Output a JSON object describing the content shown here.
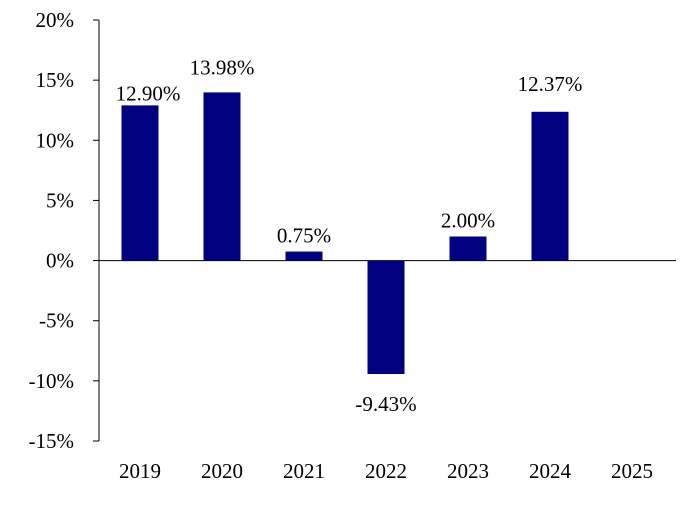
{
  "chart_data": {
    "type": "bar",
    "categories": [
      "2019",
      "2020",
      "2021",
      "2022",
      "2023",
      "2024",
      "2025"
    ],
    "values": [
      12.9,
      13.98,
      0.75,
      -9.43,
      2.0,
      12.37,
      null
    ],
    "data_labels": [
      "12.90%",
      "13.98%",
      "0.75%",
      "-9.43%",
      "2.00%",
      "12.37%",
      ""
    ],
    "title": "",
    "xlabel": "",
    "ylabel": "",
    "ylim": [
      -15,
      20
    ],
    "yticks": [
      20,
      15,
      10,
      5,
      0,
      -5,
      -10,
      -15
    ],
    "ytick_labels": [
      "20%",
      "15%",
      "10%",
      "5%",
      "0%",
      "-5%",
      "-10%",
      "-15%"
    ],
    "grid": false,
    "legend": "none",
    "bar_color": "#000080"
  }
}
